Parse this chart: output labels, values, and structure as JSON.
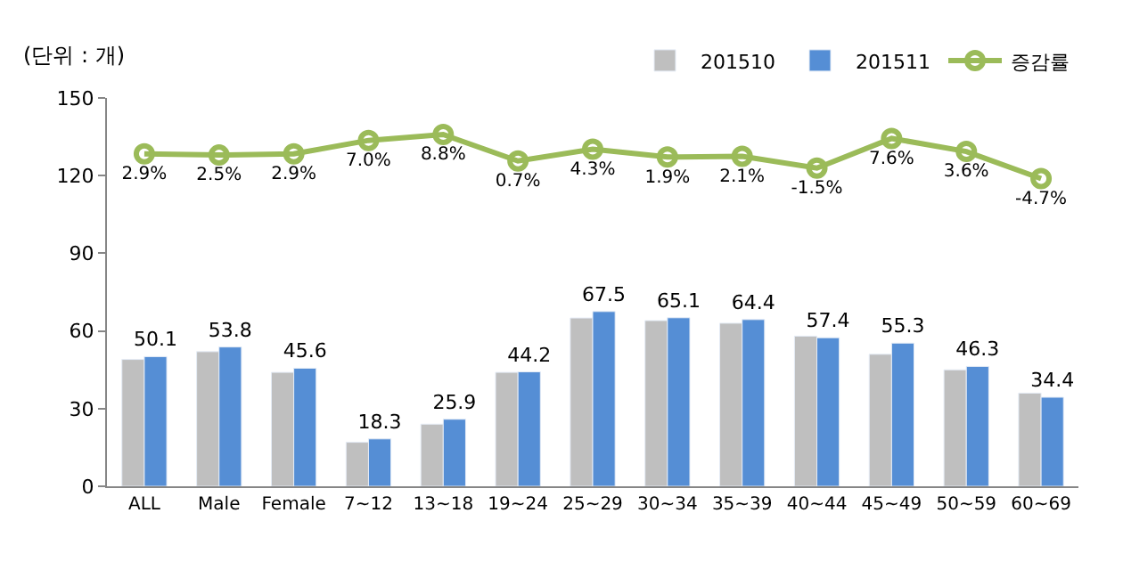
{
  "chart_data": {
    "type": "bar",
    "ylabel": "(단위 : 개)",
    "categories": [
      "ALL",
      "Male",
      "Female",
      "7~12",
      "13~18",
      "19~24",
      "25~29",
      "30~34",
      "35~39",
      "40~44",
      "45~49",
      "50~59",
      "60~69"
    ],
    "series": [
      {
        "name": "201510",
        "color": "#bfbfbf",
        "values": [
          49,
          52,
          44,
          17,
          24,
          44,
          65,
          64,
          63,
          58,
          51,
          45,
          36
        ]
      },
      {
        "name": "201511",
        "color": "#558ed5",
        "values": [
          50.1,
          53.8,
          45.6,
          18.3,
          25.9,
          44.2,
          67.5,
          65.1,
          64.4,
          57.4,
          55.3,
          46.3,
          34.4
        ],
        "value_labels": [
          "50.1",
          "53.8",
          "45.6",
          "18.3",
          "25.9",
          "44.2",
          "67.5",
          "65.1",
          "64.4",
          "57.4",
          "55.3",
          "46.3",
          "34.4"
        ]
      },
      {
        "name": "증감률",
        "type": "line",
        "axis": "y2",
        "color": "#9bbb59",
        "marker": "circle",
        "values": [
          2.9,
          2.5,
          2.9,
          7.0,
          8.8,
          0.7,
          4.3,
          1.9,
          2.1,
          -1.5,
          7.6,
          3.6,
          -4.7
        ],
        "value_labels": [
          "2.9%",
          "2.5%",
          "2.9%",
          "7.0%",
          "8.8%",
          "0.7%",
          "4.3%",
          "1.9%",
          "2.1%",
          "-1.5%",
          "7.6%",
          "3.6%",
          "-4.7%"
        ]
      }
    ],
    "ylim": [
      0,
      150
    ],
    "yticks": [
      0,
      30,
      60,
      90,
      120,
      150
    ],
    "y2lim": [
      -99,
      20
    ],
    "tick_labels": "y",
    "legend": "top right"
  }
}
